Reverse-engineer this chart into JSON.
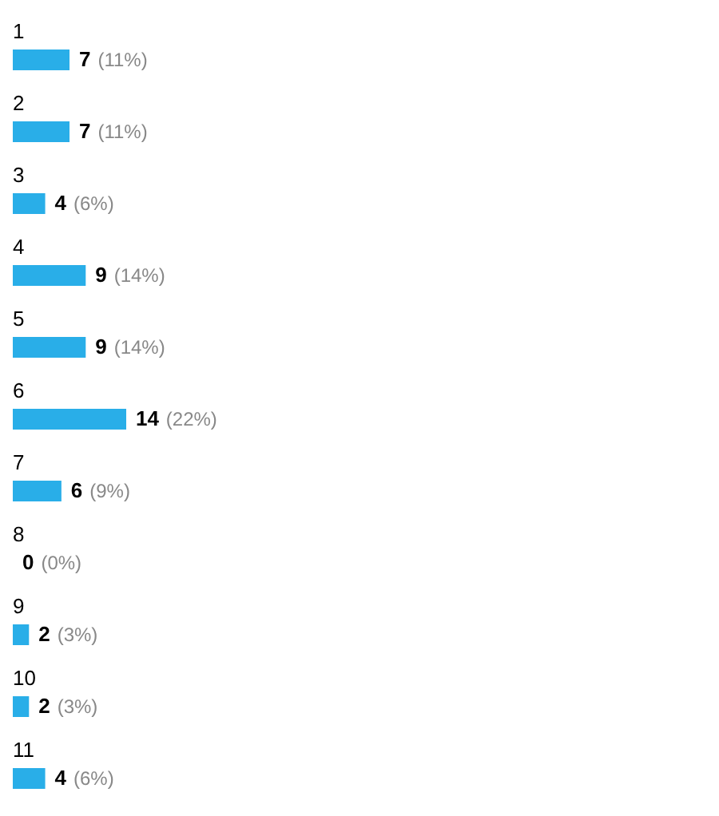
{
  "chart_data": {
    "type": "bar",
    "orientation": "horizontal",
    "color": "#29aee8",
    "categories": [
      "1",
      "2",
      "3",
      "4",
      "5",
      "6",
      "7",
      "8",
      "9",
      "10",
      "11"
    ],
    "values": [
      7,
      7,
      4,
      9,
      9,
      14,
      6,
      0,
      2,
      2,
      4
    ],
    "value_labels": [
      "7 (11%)",
      "7 (11%)",
      "4 (6%)",
      "9 (14%)",
      "9 (14%)",
      "14 (22%)",
      "6 (9%)",
      "0 (0%)",
      "2 (3%)",
      "2 (3%)",
      "4 (6%)"
    ]
  }
}
